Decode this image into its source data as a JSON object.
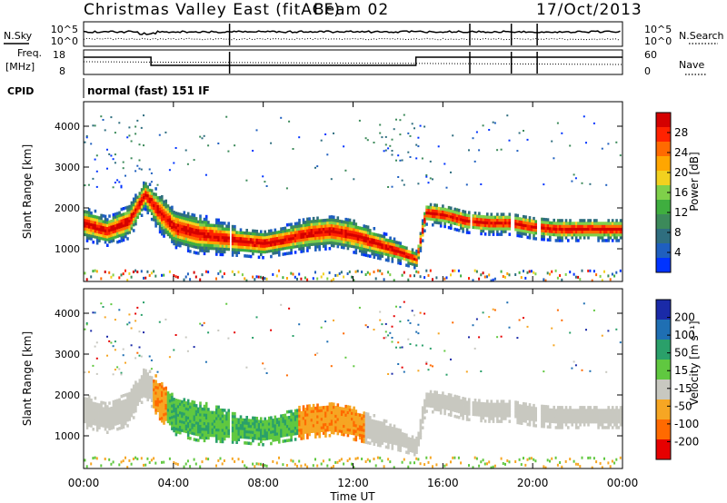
{
  "header": {
    "station": "Christmas Valley East (fitACF)",
    "beam": "Beam 02",
    "date": "17/Oct/2013"
  },
  "panels": {
    "noise": {
      "left_label": "N.Sky",
      "right_label": "N.Search",
      "left_ticks": [
        "10^5",
        "10^0"
      ],
      "right_ticks": [
        "10^5",
        "10^0"
      ]
    },
    "freq": {
      "left_label_1": "Freq.",
      "left_label_2": "[MHz]",
      "left_ticks": [
        "18",
        "8"
      ],
      "right_ticks": [
        "60",
        "0"
      ],
      "right_label": "Nave"
    },
    "cpid": {
      "label": "CPID",
      "value": "normal (fast) 151 IF"
    }
  },
  "power_colorbar": {
    "label": "Power [dB]",
    "ticks": [
      "28",
      "24",
      "20",
      "16",
      "12",
      "8",
      "4"
    ],
    "colors": [
      "#d40000",
      "#ff2200",
      "#ff6a00",
      "#ffa600",
      "#f2d11f",
      "#7fd04a",
      "#3fae3f",
      "#3c8a5a",
      "#2f6e7f",
      "#1f5fbf",
      "#0033ff"
    ]
  },
  "velocity_colorbar": {
    "label": "Velocity [m s⁻¹]",
    "ticks": [
      "200",
      "100",
      "50",
      "15",
      "-15",
      "-50",
      "-100",
      "-200"
    ],
    "colors": [
      "#1a2aa8",
      "#1f6fb3",
      "#2aa06a",
      "#60c840",
      "#c8c8c0",
      "#f6a623",
      "#ff6a00",
      "#e60000"
    ]
  },
  "chart_data": [
    {
      "type": "heatmap",
      "name": "power",
      "ylabel": "Slant Range [km]",
      "yticks": [
        "4000",
        "3000",
        "2000",
        "1000"
      ],
      "ylim": [
        200,
        4600
      ],
      "xlim": [
        0,
        24
      ],
      "main_echo_band": {
        "hours": [
          0.0,
          1.0,
          2.0,
          2.7,
          3.3,
          4.0,
          5.0,
          6.0,
          7.0,
          8.0,
          9.0,
          10.0,
          11.0,
          12.0,
          13.0,
          14.0,
          14.8,
          15.2,
          16.0,
          17.0,
          18.0,
          19.0,
          20.0,
          21.0,
          22.0,
          23.0,
          23.7
        ],
        "center_km": [
          1600,
          1400,
          1650,
          2300,
          1900,
          1500,
          1350,
          1250,
          1150,
          1100,
          1200,
          1350,
          1400,
          1300,
          1100,
          900,
          700,
          1850,
          1800,
          1650,
          1600,
          1600,
          1500,
          1450,
          1450,
          1450,
          1450
        ],
        "halfwidth_km": [
          300,
          250,
          300,
          250,
          350,
          350,
          350,
          300,
          250,
          250,
          250,
          300,
          300,
          300,
          250,
          200,
          150,
          200,
          200,
          200,
          200,
          200,
          200,
          200,
          200,
          200,
          200
        ],
        "peak_power_db": 30
      }
    },
    {
      "type": "heatmap",
      "name": "velocity",
      "ylabel": "Slant Range [km]",
      "yticks": [
        "4000",
        "3000",
        "2000",
        "1000"
      ],
      "ylim": [
        200,
        4600
      ],
      "xlim": [
        0,
        24
      ],
      "xlabel": "Time UT",
      "xticks": [
        "00:00",
        "04:00",
        "08:00",
        "12:00",
        "16:00",
        "20:00",
        "00:00"
      ],
      "main_echo_velocity_class": [
        "ground",
        "ground",
        "ground",
        "ground",
        "negative",
        "positive-low",
        "positive-low",
        "positive-low",
        "positive-low",
        "positive-low",
        "positive-low",
        "negative",
        "negative",
        "negative",
        "ground",
        "ground",
        "ground",
        "ground",
        "ground",
        "ground",
        "ground",
        "ground",
        "ground",
        "ground",
        "ground",
        "ground",
        "ground"
      ]
    }
  ],
  "data_gaps_hours": [
    6.5,
    17.2,
    19.05,
    20.2
  ]
}
